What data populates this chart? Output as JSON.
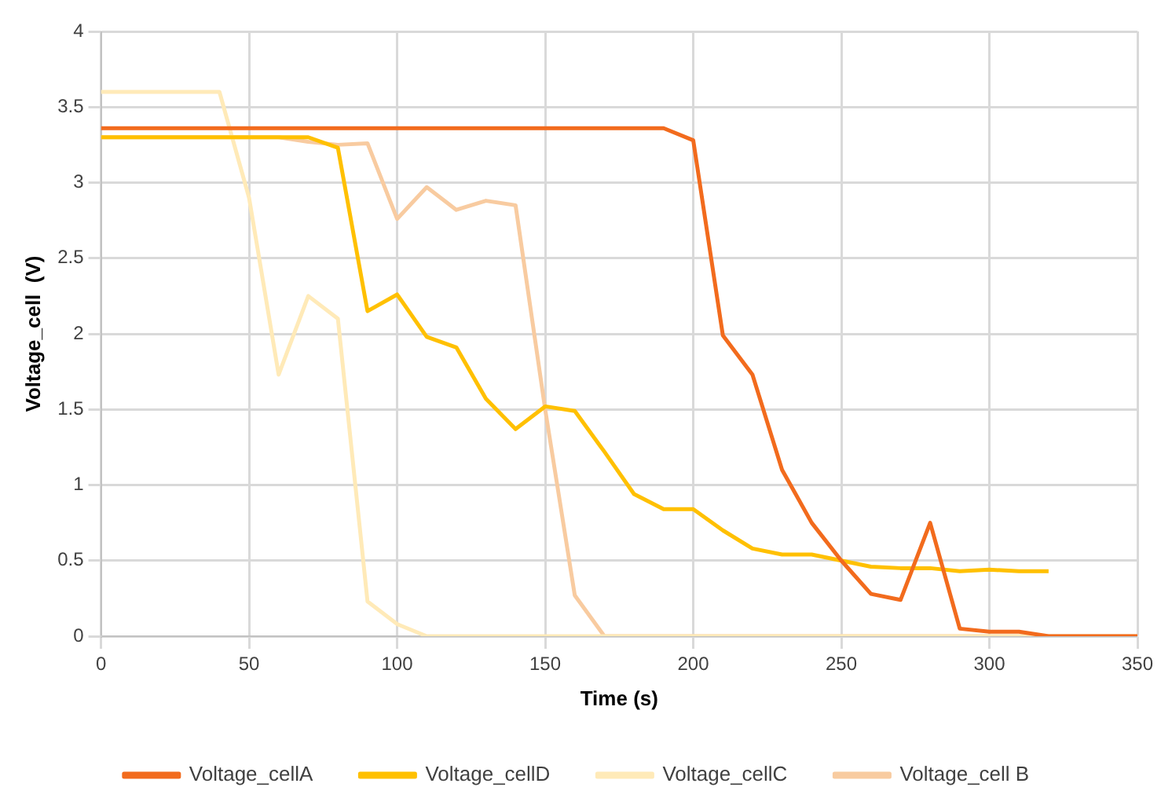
{
  "chart_data": {
    "type": "line",
    "xlabel": "Time (s)",
    "ylabel": "Voltage_cell  (V)",
    "xlim": [
      0,
      350
    ],
    "xticks": [
      0,
      50,
      100,
      150,
      200,
      250,
      300,
      350
    ],
    "ylim": [
      0,
      4
    ],
    "yticks": [
      0,
      0.5,
      1,
      1.5,
      2,
      2.5,
      3,
      3.5,
      4
    ],
    "grid": true,
    "legend": "bottom",
    "marker": "none",
    "line_style": "solid",
    "series": [
      {
        "name": "Voltage_cellA",
        "color": "#f26b1d",
        "x": [
          0,
          10,
          20,
          30,
          40,
          50,
          60,
          70,
          80,
          90,
          100,
          110,
          120,
          130,
          140,
          150,
          160,
          170,
          180,
          190,
          200,
          210,
          220,
          230,
          240,
          250,
          260,
          270,
          280,
          290,
          300,
          310,
          320,
          330,
          340,
          350
        ],
        "values": [
          3.36,
          3.36,
          3.36,
          3.36,
          3.36,
          3.36,
          3.36,
          3.36,
          3.36,
          3.36,
          3.36,
          3.36,
          3.36,
          3.36,
          3.36,
          3.36,
          3.36,
          3.36,
          3.36,
          3.36,
          3.28,
          1.99,
          1.73,
          1.1,
          0.75,
          0.5,
          0.28,
          0.24,
          0.75,
          0.05,
          0.03,
          0.03,
          0,
          0,
          0,
          0
        ]
      },
      {
        "name": "Voltage_cellD",
        "color": "#ffc000",
        "x": [
          0,
          10,
          20,
          30,
          40,
          50,
          60,
          70,
          80,
          90,
          100,
          110,
          120,
          130,
          140,
          150,
          160,
          170,
          180,
          190,
          200,
          210,
          220,
          230,
          240,
          250,
          260,
          270,
          280,
          290,
          300,
          310,
          320
        ],
        "values": [
          3.3,
          3.3,
          3.3,
          3.3,
          3.3,
          3.3,
          3.3,
          3.3,
          3.23,
          2.15,
          2.26,
          1.98,
          1.91,
          1.57,
          1.37,
          1.52,
          1.49,
          1.22,
          0.94,
          0.84,
          0.84,
          0.7,
          0.58,
          0.54,
          0.54,
          0.5,
          0.46,
          0.45,
          0.45,
          0.43,
          0.44,
          0.43,
          0.43
        ]
      },
      {
        "name": "Voltage_cellC",
        "color": "#ffeab8",
        "x": [
          0,
          10,
          20,
          30,
          40,
          50,
          60,
          70,
          80,
          90,
          100,
          110,
          120,
          130,
          140,
          150,
          160,
          170,
          180,
          190,
          200,
          210,
          220,
          230,
          240,
          250,
          260,
          270,
          280,
          290,
          300,
          310,
          320,
          330,
          340,
          350
        ],
        "values": [
          3.6,
          3.6,
          3.6,
          3.6,
          3.6,
          2.9,
          1.73,
          2.25,
          2.1,
          0.23,
          0.08,
          0,
          0,
          0,
          0,
          0,
          0,
          0,
          0,
          0,
          0,
          0,
          0,
          0,
          0,
          0,
          0,
          0,
          0,
          0,
          0,
          0,
          0,
          0,
          0,
          0
        ]
      },
      {
        "name": "Voltage_cell B",
        "color": "#f8cba0",
        "x": [
          0,
          10,
          20,
          30,
          40,
          50,
          60,
          70,
          80,
          90,
          100,
          110,
          120,
          130,
          140,
          150,
          160,
          170,
          180,
          190,
          200,
          210,
          220,
          230,
          240,
          250,
          260,
          270,
          280,
          290,
          300,
          310,
          320,
          330,
          340,
          350
        ],
        "values": [
          3.3,
          3.3,
          3.3,
          3.3,
          3.3,
          3.3,
          3.3,
          3.27,
          3.25,
          3.26,
          2.76,
          2.97,
          2.82,
          2.88,
          2.85,
          1.5,
          0.27,
          0,
          0,
          0,
          0,
          0,
          0,
          0,
          0,
          0,
          0,
          0,
          0,
          0,
          0,
          0,
          0,
          0,
          0,
          0
        ]
      }
    ]
  }
}
